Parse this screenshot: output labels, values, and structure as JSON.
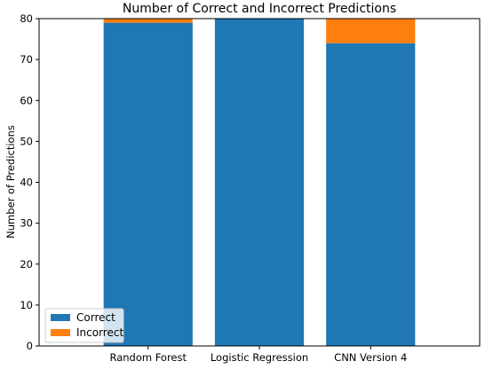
{
  "chart_data": {
    "type": "bar",
    "stacked": true,
    "title": "Number of Correct and Incorrect Predictions",
    "xlabel": "",
    "ylabel": "Number of Predictions",
    "categories": [
      "Random Forest",
      "Logistic Regression",
      "CNN Version 4"
    ],
    "series": [
      {
        "name": "Correct",
        "color": "#1f77b4",
        "values": [
          79,
          80,
          74
        ]
      },
      {
        "name": "Incorrect",
        "color": "#ff7f0e",
        "values": [
          1,
          0,
          6
        ]
      }
    ],
    "ylim": [
      0,
      80
    ],
    "yticks": [
      0,
      10,
      20,
      30,
      40,
      50,
      60,
      70,
      80
    ],
    "grid": false,
    "legend_position": "lower-left"
  }
}
